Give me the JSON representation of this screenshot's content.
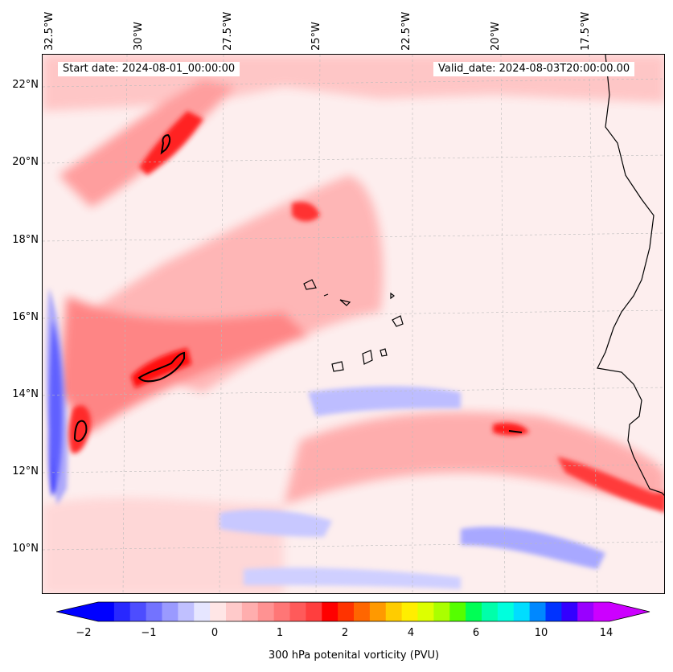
{
  "map": {
    "start_date": "Start date: 2024-08-01_00:00:00",
    "valid_date": "Valid_date: 2024-08-03T20:00:00.00",
    "longitude_labels": [
      "32.5°W",
      "30°W",
      "27.5°W",
      "25°W",
      "22.5°W",
      "20°W",
      "17.5°W"
    ],
    "latitude_labels": [
      "22°N",
      "20°N",
      "18°N",
      "16°N",
      "14°N",
      "12°N",
      "10°N"
    ],
    "region": {
      "lon_range": [
        -33,
        -16
      ],
      "lat_range": [
        9,
        22.8
      ]
    }
  },
  "colorbar": {
    "label": "300 hPa potenital vorticity (PVU)",
    "tick_labels": [
      "−2",
      "−1",
      "0",
      "1",
      "2",
      "4",
      "6",
      "10",
      "14"
    ],
    "colors": [
      "#0000ff",
      "#2828ff",
      "#4d4dff",
      "#7373ff",
      "#9a9aff",
      "#c0c0ff",
      "#e6e6ff",
      "#ffe6e6",
      "#ffcaca",
      "#ffaeae",
      "#ff9292",
      "#ff7676",
      "#ff5a5a",
      "#ff3e3e",
      "#ff0000",
      "#ff3300",
      "#ff6600",
      "#ff9900",
      "#ffcc00",
      "#ffee00",
      "#ddff00",
      "#aaff00",
      "#55ff00",
      "#00ff55",
      "#00ffaa",
      "#00ffdd",
      "#00ddff",
      "#0088ff",
      "#0033ff",
      "#3300ff",
      "#9900ff",
      "#cc00ff"
    ],
    "under_color": "#0000ff",
    "over_color": "#cc00ff"
  },
  "colors": {
    "background": "#fdeeee",
    "light_pink": "#ffd2d2",
    "medium_red": "#ff8c8c",
    "strong_red": "#ff2a2a",
    "light_blue": "#d6d6ff",
    "blue": "#6a6aff",
    "coast": "#000000"
  }
}
